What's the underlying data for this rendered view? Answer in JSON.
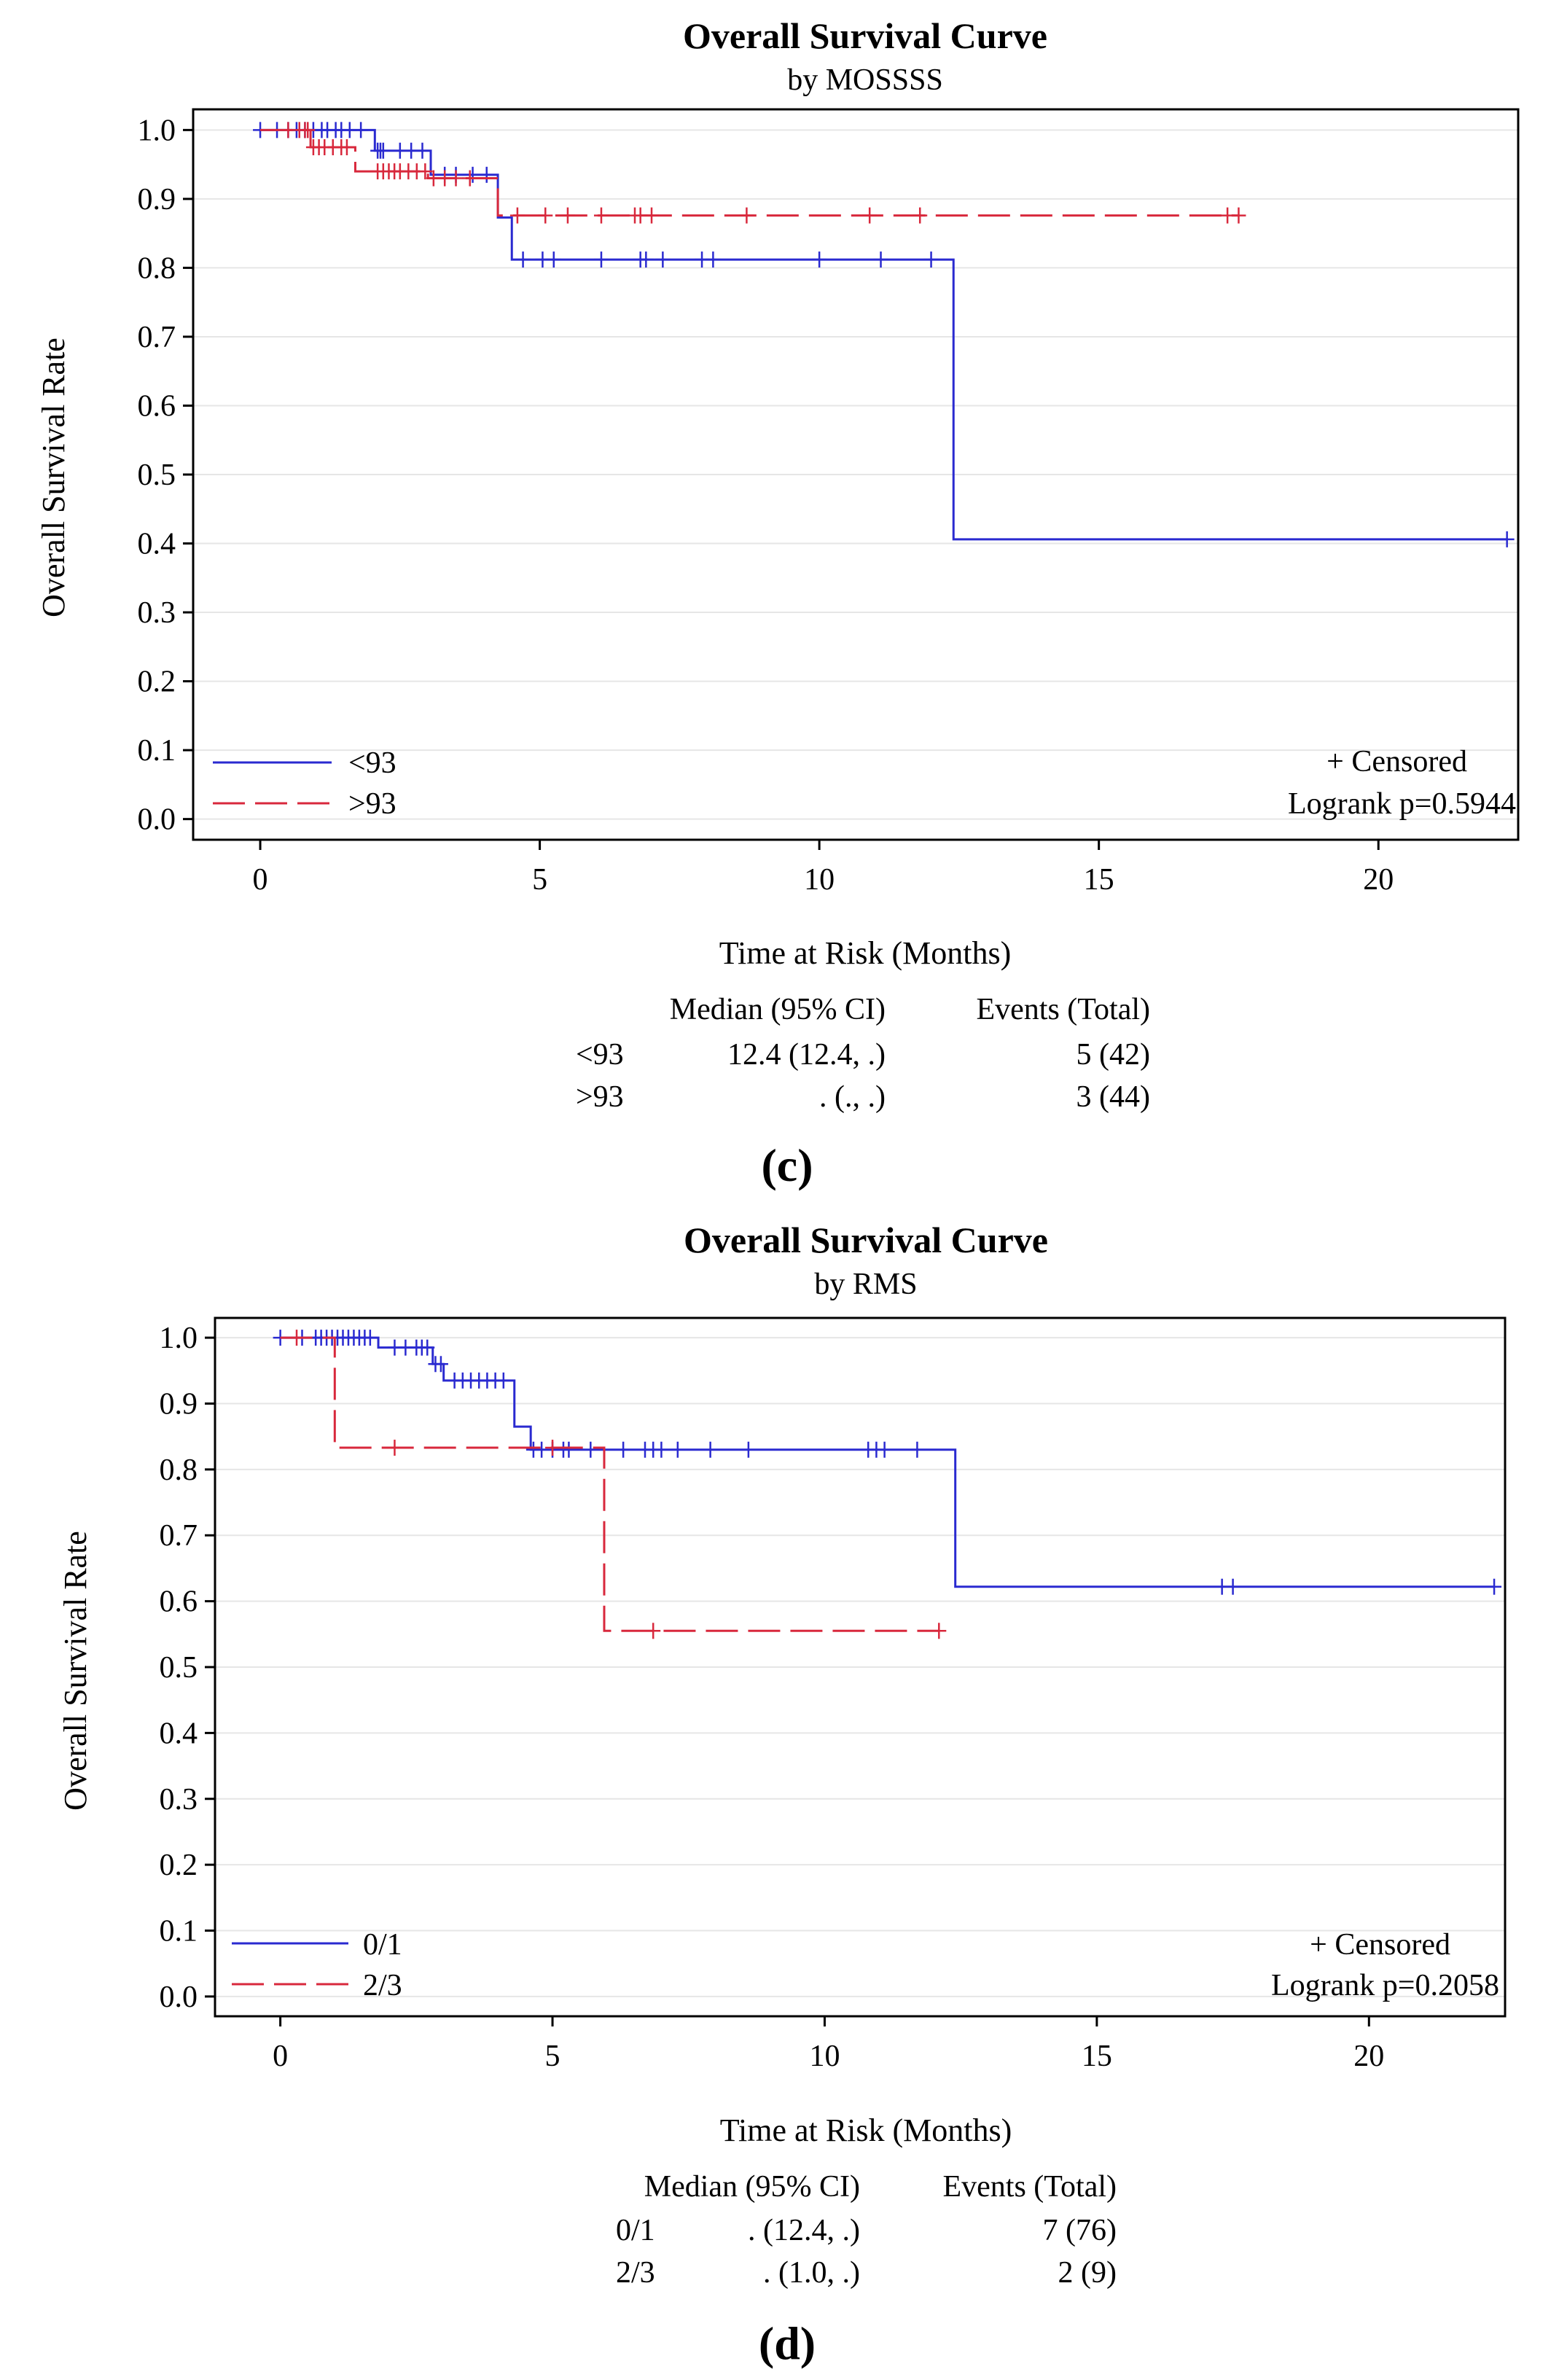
{
  "colors": {
    "group1": "#2a2ad0",
    "group2": "#d8283c",
    "frame": "#000000",
    "grid": "#e6e6e6"
  },
  "chart_data": [
    {
      "type": "line",
      "panel_label": "(c)",
      "title": "Overall Survival Curve",
      "subtitle": "by MOSSSS",
      "xlabel": "Time at Risk (Months)",
      "ylabel": "Overall Survival Rate",
      "xlim": [
        -1.2,
        22.5
      ],
      "ylim": [
        -0.03,
        1.03
      ],
      "xticks": [
        0,
        5,
        10,
        15,
        20
      ],
      "yticks": [
        0.0,
        0.1,
        0.2,
        0.3,
        0.4,
        0.5,
        0.6,
        0.7,
        0.8,
        0.9,
        1.0
      ],
      "grid": "horizontal",
      "legend": {
        "position": "bottom-left"
      },
      "annotation": {
        "censored": "+ Censored",
        "logrank": "Logrank p=0.5944"
      },
      "series": [
        {
          "name": "<93",
          "style": "solid",
          "steps": [
            [
              0,
              1.0
            ],
            [
              2.05,
              0.97
            ],
            [
              3.05,
              0.935
            ],
            [
              4.25,
              0.873
            ],
            [
              4.5,
              0.812
            ],
            [
              12.4,
              0.406
            ],
            [
              22.3,
              0.406
            ]
          ],
          "censored": [
            0,
            0.3,
            0.5,
            0.65,
            0.8,
            0.95,
            1.1,
            1.2,
            1.35,
            1.45,
            1.6,
            1.8,
            2.1,
            2.15,
            2.2,
            2.5,
            2.7,
            2.9,
            3.3,
            3.5,
            3.8,
            4.05,
            4.7,
            5.05,
            5.25,
            6.1,
            6.8,
            6.9,
            7.2,
            7.9,
            8.1,
            10.0,
            11.1,
            12.0,
            22.3
          ]
        },
        {
          "name": ">93",
          "style": "dashed",
          "steps": [
            [
              0,
              1.0
            ],
            [
              0.9,
              0.975
            ],
            [
              1.7,
              0.94
            ],
            [
              3.0,
              0.93
            ],
            [
              4.25,
              0.876
            ],
            [
              17.5,
              0.876
            ]
          ],
          "censored": [
            0.5,
            0.7,
            0.8,
            0.85,
            0.95,
            1.05,
            1.15,
            1.3,
            1.45,
            1.55,
            2.1,
            2.2,
            2.3,
            2.4,
            2.5,
            2.65,
            2.8,
            2.95,
            3.1,
            3.3,
            3.5,
            3.75,
            4.6,
            5.1,
            5.5,
            6.1,
            6.7,
            6.8,
            7.0,
            8.7,
            10.9,
            11.8,
            17.3,
            17.5
          ]
        }
      ],
      "table": {
        "headers": [
          "Median (95% CI)",
          "Events (Total)"
        ],
        "rows": [
          {
            "group": "<93",
            "median": "12.4 (12.4, .)",
            "events": "5 (42)"
          },
          {
            "group": ">93",
            "median": ". (., .)",
            "events": "3 (44)"
          }
        ]
      }
    },
    {
      "type": "line",
      "panel_label": "(d)",
      "title": "Overall Survival Curve",
      "subtitle": "by RMS",
      "xlabel": "Time at Risk (Months)",
      "ylabel": "Overall Survival Rate",
      "xlim": [
        -1.2,
        22.5
      ],
      "ylim": [
        -0.03,
        1.03
      ],
      "xticks": [
        0,
        5,
        10,
        15,
        20
      ],
      "yticks": [
        0.0,
        0.1,
        0.2,
        0.3,
        0.4,
        0.5,
        0.6,
        0.7,
        0.8,
        0.9,
        1.0
      ],
      "grid": "horizontal",
      "legend": {
        "position": "bottom-left"
      },
      "annotation": {
        "censored": "+ Censored",
        "logrank": "Logrank p=0.2058"
      },
      "series": [
        {
          "name": "0/1",
          "style": "solid",
          "steps": [
            [
              0,
              1.0
            ],
            [
              1.8,
              0.985
            ],
            [
              2.8,
              0.96
            ],
            [
              3.0,
              0.935
            ],
            [
              4.3,
              0.865
            ],
            [
              4.6,
              0.83
            ],
            [
              12.4,
              0.622
            ],
            [
              22.3,
              0.622
            ]
          ],
          "censored": [
            0,
            0.4,
            0.65,
            0.75,
            0.85,
            0.95,
            1.05,
            1.15,
            1.25,
            1.35,
            1.45,
            1.55,
            1.65,
            2.1,
            2.3,
            2.5,
            2.6,
            2.7,
            2.85,
            2.95,
            3.2,
            3.35,
            3.5,
            3.65,
            3.8,
            3.95,
            4.1,
            4.65,
            4.8,
            5.0,
            5.2,
            5.3,
            5.7,
            6.3,
            6.7,
            6.85,
            7.0,
            7.3,
            7.9,
            8.6,
            10.8,
            10.95,
            11.1,
            11.7,
            17.3,
            17.5,
            22.3
          ]
        },
        {
          "name": "2/3",
          "style": "dashed",
          "steps": [
            [
              0,
              1.0
            ],
            [
              1.0,
              0.833
            ],
            [
              5.95,
              0.555
            ],
            [
              12.1,
              0.555
            ]
          ],
          "censored": [
            0.3,
            2.1,
            5.0,
            6.85,
            12.1
          ]
        }
      ],
      "table": {
        "headers": [
          "Median (95% CI)",
          "Events (Total)"
        ],
        "rows": [
          {
            "group": "0/1",
            "median": ". (12.4, .)",
            "events": "7 (76)"
          },
          {
            "group": "2/3",
            "median": ". (1.0, .)",
            "events": "2 (9)"
          }
        ]
      }
    }
  ]
}
